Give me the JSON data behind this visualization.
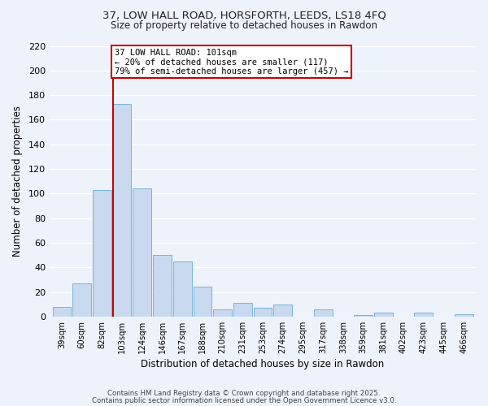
{
  "title1": "37, LOW HALL ROAD, HORSFORTH, LEEDS, LS18 4FQ",
  "title2": "Size of property relative to detached houses in Rawdon",
  "xlabel": "Distribution of detached houses by size in Rawdon",
  "ylabel": "Number of detached properties",
  "categories": [
    "39sqm",
    "60sqm",
    "82sqm",
    "103sqm",
    "124sqm",
    "146sqm",
    "167sqm",
    "188sqm",
    "210sqm",
    "231sqm",
    "253sqm",
    "274sqm",
    "295sqm",
    "317sqm",
    "338sqm",
    "359sqm",
    "381sqm",
    "402sqm",
    "423sqm",
    "445sqm",
    "466sqm"
  ],
  "values": [
    8,
    27,
    103,
    173,
    104,
    50,
    45,
    24,
    6,
    11,
    7,
    10,
    0,
    6,
    0,
    1,
    3,
    0,
    3,
    0,
    2
  ],
  "bar_color": "#c8d9f0",
  "bar_edge_color": "#7ab4d8",
  "bg_color": "#eef2fb",
  "grid_color": "#ffffff",
  "vline_color": "#cc0000",
  "annotation_text": "37 LOW HALL ROAD: 101sqm\n← 20% of detached houses are smaller (117)\n79% of semi-detached houses are larger (457) →",
  "annotation_box_edgecolor": "#cc0000",
  "ylim": [
    0,
    220
  ],
  "yticks": [
    0,
    20,
    40,
    60,
    80,
    100,
    120,
    140,
    160,
    180,
    200,
    220
  ],
  "footer1": "Contains HM Land Registry data © Crown copyright and database right 2025.",
  "footer2": "Contains public sector information licensed under the Open Government Licence v3.0."
}
